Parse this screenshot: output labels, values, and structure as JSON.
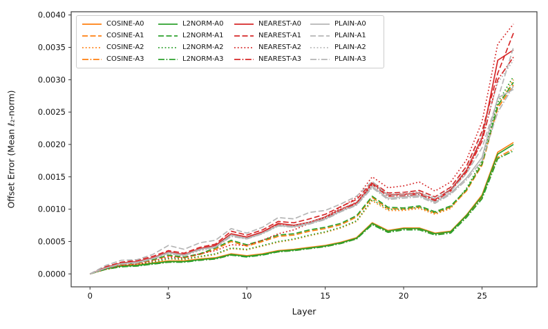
{
  "chart_data": {
    "type": "line",
    "title": "",
    "xlabel": "Layer",
    "ylabel": "Offset Error (Mean ℓ₂-norm)",
    "xlim": [
      -1.2,
      28.5
    ],
    "ylim": [
      -0.0002,
      0.00405
    ],
    "grid": false,
    "legend_position": "upper-left",
    "x_ticks": {
      "values": [
        0,
        5,
        10,
        15,
        20,
        25
      ],
      "labels": [
        "0",
        "5",
        "10",
        "15",
        "20",
        "25"
      ]
    },
    "y_ticks": {
      "values": [
        0.0,
        0.0005,
        0.001,
        0.0015,
        0.002,
        0.0025,
        0.003,
        0.0035,
        0.004
      ],
      "labels": [
        "0.0000",
        "0.0005",
        "0.0010",
        "0.0015",
        "0.0020",
        "0.0025",
        "0.0030",
        "0.0035",
        "0.0040"
      ]
    },
    "x": [
      0,
      1,
      2,
      3,
      4,
      5,
      6,
      7,
      8,
      9,
      10,
      11,
      12,
      13,
      14,
      15,
      16,
      17,
      18,
      19,
      20,
      21,
      22,
      23,
      24,
      25,
      26,
      27
    ],
    "value_scale": 0.0001,
    "colors": {
      "cosine": "#ff7f0e",
      "l2norm": "#2ca02c",
      "nearest": "#d62728",
      "plain": "#b5b5b5"
    },
    "dash_styles": {
      "solid": "",
      "dashed": "8,3.5",
      "dotted": "1.8,3",
      "dashdot": "9,2.5,1.8,2.5"
    },
    "series": [
      {
        "name": "COSINE-A0",
        "family": "cosine",
        "dash": "solid",
        "values": [
          0,
          0.8,
          1.3,
          1.4,
          1.7,
          2.0,
          2.0,
          2.3,
          2.5,
          3.1,
          2.8,
          3.1,
          3.6,
          3.8,
          4.1,
          4.4,
          4.9,
          5.6,
          7.9,
          6.7,
          7.1,
          7.1,
          6.3,
          6.6,
          9.1,
          12.2,
          18.8,
          20.3
        ]
      },
      {
        "name": "COSINE-A1",
        "family": "cosine",
        "dash": "dashed",
        "values": [
          0,
          0.8,
          1.4,
          1.6,
          2.1,
          2.8,
          2.5,
          3.0,
          3.8,
          5.0,
          4.3,
          5.0,
          5.8,
          6.0,
          6.6,
          7.0,
          7.6,
          8.8,
          11.8,
          10.1,
          10.0,
          10.3,
          9.4,
          10.3,
          12.8,
          16.8,
          25.6,
          29.2
        ]
      },
      {
        "name": "COSINE-A2",
        "family": "cosine",
        "dash": "dotted",
        "values": [
          0,
          0.7,
          1.1,
          1.3,
          1.7,
          2.3,
          2.2,
          2.6,
          3.0,
          3.9,
          3.7,
          4.3,
          4.9,
          5.3,
          5.9,
          6.4,
          7.1,
          8.1,
          11.3,
          9.8,
          9.8,
          10.1,
          9.2,
          10.1,
          13.0,
          17.2,
          26.0,
          30.0
        ]
      },
      {
        "name": "COSINE-A3",
        "family": "cosine",
        "dash": "dashdot",
        "values": [
          0,
          0.7,
          1.1,
          1.3,
          1.5,
          1.8,
          1.9,
          2.1,
          2.3,
          2.9,
          2.7,
          3.0,
          3.4,
          3.6,
          3.9,
          4.2,
          4.7,
          5.4,
          7.7,
          6.5,
          6.9,
          6.9,
          6.1,
          6.4,
          8.8,
          11.8,
          18.0,
          19.3
        ]
      },
      {
        "name": "L2NORM-A0",
        "family": "l2norm",
        "dash": "solid",
        "values": [
          0,
          0.8,
          1.2,
          1.3,
          1.6,
          1.9,
          1.9,
          2.2,
          2.4,
          3.0,
          2.7,
          3.0,
          3.5,
          3.7,
          4.0,
          4.3,
          4.8,
          5.5,
          7.8,
          6.6,
          7.0,
          7.0,
          6.2,
          6.5,
          9.0,
          12.0,
          18.5,
          20.0
        ]
      },
      {
        "name": "L2NORM-A1",
        "family": "l2norm",
        "dash": "dashed",
        "values": [
          0,
          0.9,
          1.5,
          1.7,
          2.2,
          2.9,
          2.6,
          3.1,
          4.0,
          5.2,
          4.5,
          5.2,
          6.0,
          6.2,
          6.8,
          7.2,
          7.8,
          9.0,
          12.0,
          10.3,
          10.2,
          10.5,
          9.6,
          10.5,
          13.0,
          17.0,
          26.0,
          29.6
        ]
      },
      {
        "name": "L2NORM-A2",
        "family": "l2norm",
        "dash": "dotted",
        "values": [
          0,
          0.8,
          1.2,
          1.4,
          1.8,
          2.4,
          2.3,
          2.7,
          3.1,
          4.0,
          3.8,
          4.4,
          5.0,
          5.4,
          6.0,
          6.5,
          7.2,
          8.2,
          11.5,
          10.0,
          10.0,
          10.3,
          9.4,
          10.3,
          13.2,
          17.5,
          26.5,
          30.5
        ]
      },
      {
        "name": "L2NORM-A3",
        "family": "l2norm",
        "dash": "dashdot",
        "values": [
          0,
          0.7,
          1.1,
          1.2,
          1.5,
          1.8,
          1.8,
          2.1,
          2.3,
          2.9,
          2.6,
          2.9,
          3.4,
          3.6,
          3.9,
          4.2,
          4.7,
          5.4,
          7.6,
          6.4,
          6.8,
          6.8,
          6.0,
          6.3,
          8.7,
          11.6,
          17.8,
          19.0
        ]
      },
      {
        "name": "NEAREST-A0",
        "family": "nearest",
        "dash": "solid",
        "values": [
          0,
          1.0,
          1.7,
          1.9,
          2.5,
          3.4,
          3.0,
          3.9,
          4.4,
          6.2,
          5.7,
          6.5,
          7.8,
          7.5,
          8.0,
          8.8,
          10.0,
          11.0,
          14.0,
          12.2,
          12.3,
          12.5,
          11.5,
          13.0,
          16.0,
          21.0,
          33.0,
          34.6
        ]
      },
      {
        "name": "NEAREST-A1",
        "family": "nearest",
        "dash": "dashed",
        "values": [
          0,
          1.1,
          1.8,
          2.1,
          2.7,
          3.6,
          3.2,
          4.1,
          4.6,
          6.6,
          6.0,
          6.8,
          8.1,
          7.9,
          8.5,
          9.2,
          10.4,
          11.5,
          14.2,
          12.5,
          12.6,
          12.9,
          11.9,
          13.4,
          16.6,
          22.0,
          31.0,
          37.2
        ]
      },
      {
        "name": "NEAREST-A2",
        "family": "nearest",
        "dash": "dotted",
        "values": [
          0,
          0.8,
          1.3,
          1.5,
          2.0,
          2.6,
          2.5,
          3.1,
          3.6,
          4.5,
          4.4,
          5.2,
          6.2,
          6.8,
          7.8,
          8.8,
          10.3,
          11.8,
          15.0,
          13.3,
          13.6,
          14.2,
          12.8,
          14.2,
          17.6,
          23.5,
          35.5,
          38.6
        ]
      },
      {
        "name": "NEAREST-A3",
        "family": "nearest",
        "dash": "dashdot",
        "values": [
          0,
          1.0,
          1.6,
          1.8,
          2.4,
          3.3,
          2.9,
          3.8,
          4.3,
          6.0,
          5.5,
          6.3,
          7.6,
          7.3,
          7.8,
          8.6,
          9.8,
          10.8,
          13.8,
          12.0,
          12.1,
          12.3,
          11.3,
          12.8,
          15.7,
          20.5,
          30.0,
          33.5
        ]
      },
      {
        "name": "PLAIN-A0",
        "family": "plain",
        "dash": "solid",
        "values": [
          0,
          0.9,
          1.6,
          1.8,
          2.4,
          3.3,
          2.9,
          3.8,
          4.2,
          6.0,
          5.5,
          6.3,
          7.5,
          7.3,
          7.8,
          8.5,
          9.7,
          10.7,
          13.5,
          11.7,
          11.9,
          12.1,
          11.1,
          12.5,
          14.8,
          18.0,
          27.2,
          28.5
        ]
      },
      {
        "name": "PLAIN-A1",
        "family": "plain",
        "dash": "dashed",
        "values": [
          0,
          1.3,
          2.1,
          2.2,
          3.0,
          4.4,
          3.8,
          4.8,
          5.2,
          7.0,
          6.3,
          7.2,
          8.7,
          8.5,
          9.5,
          9.8,
          10.8,
          12.0,
          14.3,
          12.1,
          12.2,
          12.4,
          11.6,
          12.8,
          15.5,
          19.5,
          27.0,
          35.0
        ]
      },
      {
        "name": "PLAIN-A2",
        "family": "plain",
        "dash": "dotted",
        "values": [
          0,
          0.9,
          1.5,
          1.7,
          2.3,
          3.1,
          2.8,
          3.6,
          4.1,
          5.8,
          5.4,
          6.2,
          7.4,
          7.4,
          8.0,
          8.7,
          10.0,
          11.2,
          13.8,
          12.3,
          12.5,
          12.7,
          11.8,
          13.2,
          16.2,
          21.5,
          29.5,
          33.0
        ]
      },
      {
        "name": "PLAIN-A3",
        "family": "plain",
        "dash": "dashdot",
        "values": [
          0,
          0.9,
          1.5,
          1.7,
          2.3,
          3.2,
          2.8,
          3.7,
          4.1,
          5.8,
          5.4,
          6.2,
          7.4,
          7.2,
          7.7,
          8.4,
          9.6,
          10.6,
          13.3,
          11.5,
          11.7,
          11.9,
          10.9,
          12.3,
          14.5,
          17.5,
          25.0,
          29.0
        ]
      }
    ]
  }
}
